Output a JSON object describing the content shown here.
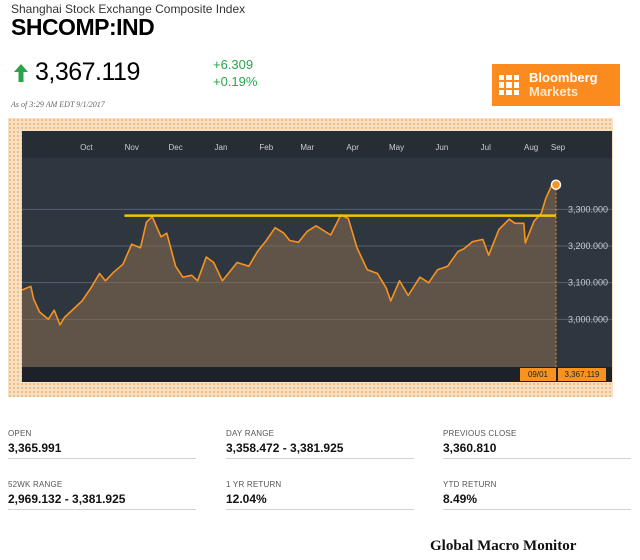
{
  "header": {
    "subtitle": "Shanghai Stock Exchange Composite Index",
    "ticker": "SHCOMP:IND",
    "price": "3,367.119",
    "change_abs": "+6.309",
    "change_pct": "+0.19%",
    "as_of": "As of 3:29 AM EDT 9/1/2017"
  },
  "logo": {
    "line1": "Bloomberg",
    "line2": "Markets"
  },
  "colors": {
    "accent": "#fb8b1e",
    "up": "#2aa34a",
    "chart_bg": "#2e3640",
    "line": "#f7931e",
    "resistance": "#f5c400"
  },
  "icons": {
    "trend": "up-arrow-icon",
    "logo": "bloomberg-grid-icon"
  },
  "chart_data": {
    "type": "area",
    "title": "",
    "x_ticks": [
      "Oct",
      "Nov",
      "Dec",
      "Jan",
      "Feb",
      "Mar",
      "Apr",
      "May",
      "Jun",
      "Jul",
      "Aug",
      "Sep"
    ],
    "y_ticks": [
      3000,
      3100,
      3200,
      3300
    ],
    "y_tick_labels": [
      "3,000.000",
      "3,100.000",
      "3,200.000",
      "3,300.000"
    ],
    "ylim": [
      2870,
      3440
    ],
    "x_range": [
      "2016-09-01",
      "2017-09-01"
    ],
    "grid": true,
    "resistance_level": 3283,
    "series": [
      {
        "points": [
          [
            "2016-09-01",
            3080
          ],
          [
            "2016-09-07",
            3090
          ],
          [
            "2016-09-09",
            3055
          ],
          [
            "2016-09-13",
            3020
          ],
          [
            "2016-09-19",
            3000
          ],
          [
            "2016-09-23",
            3025
          ],
          [
            "2016-09-27",
            2985
          ],
          [
            "2016-09-30",
            3005
          ],
          [
            "2016-10-12",
            3050
          ],
          [
            "2016-10-18",
            3085
          ],
          [
            "2016-10-24",
            3125
          ],
          [
            "2016-10-28",
            3105
          ],
          [
            "2016-11-03",
            3130
          ],
          [
            "2016-11-09",
            3150
          ],
          [
            "2016-11-15",
            3205
          ],
          [
            "2016-11-21",
            3195
          ],
          [
            "2016-11-25",
            3265
          ],
          [
            "2016-11-29",
            3280
          ],
          [
            "2016-12-05",
            3225
          ],
          [
            "2016-12-09",
            3235
          ],
          [
            "2016-12-15",
            3145
          ],
          [
            "2016-12-20",
            3115
          ],
          [
            "2016-12-26",
            3120
          ],
          [
            "2016-12-30",
            3105
          ],
          [
            "2017-01-05",
            3170
          ],
          [
            "2017-01-10",
            3155
          ],
          [
            "2017-01-16",
            3105
          ],
          [
            "2017-01-20",
            3125
          ],
          [
            "2017-01-26",
            3155
          ],
          [
            "2017-02-03",
            3145
          ],
          [
            "2017-02-09",
            3185
          ],
          [
            "2017-02-15",
            3215
          ],
          [
            "2017-02-21",
            3250
          ],
          [
            "2017-02-27",
            3235
          ],
          [
            "2017-03-03",
            3215
          ],
          [
            "2017-03-09",
            3210
          ],
          [
            "2017-03-15",
            3240
          ],
          [
            "2017-03-21",
            3255
          ],
          [
            "2017-03-27",
            3240
          ],
          [
            "2017-03-31",
            3230
          ],
          [
            "2017-04-07",
            3285
          ],
          [
            "2017-04-12",
            3275
          ],
          [
            "2017-04-18",
            3195
          ],
          [
            "2017-04-25",
            3135
          ],
          [
            "2017-05-02",
            3125
          ],
          [
            "2017-05-08",
            3085
          ],
          [
            "2017-05-11",
            3050
          ],
          [
            "2017-05-17",
            3105
          ],
          [
            "2017-05-23",
            3065
          ],
          [
            "2017-05-31",
            3115
          ],
          [
            "2017-06-06",
            3100
          ],
          [
            "2017-06-12",
            3135
          ],
          [
            "2017-06-19",
            3145
          ],
          [
            "2017-06-26",
            3185
          ],
          [
            "2017-06-30",
            3192
          ],
          [
            "2017-07-06",
            3212
          ],
          [
            "2017-07-13",
            3218
          ],
          [
            "2017-07-17",
            3175
          ],
          [
            "2017-07-24",
            3245
          ],
          [
            "2017-07-31",
            3273
          ],
          [
            "2017-08-04",
            3262
          ],
          [
            "2017-08-10",
            3262
          ],
          [
            "2017-08-11",
            3208
          ],
          [
            "2017-08-17",
            3268
          ],
          [
            "2017-08-22",
            3290
          ],
          [
            "2017-08-25",
            3330
          ],
          [
            "2017-08-29",
            3365
          ],
          [
            "2017-09-01",
            3367.119
          ]
        ]
      }
    ],
    "last_point": {
      "date_label": "09/01",
      "value_label": "3,367.119"
    }
  },
  "stats": [
    {
      "label": "OPEN",
      "value": "3,365.991"
    },
    {
      "label": "DAY RANGE",
      "value": "3,358.472 - 3,381.925"
    },
    {
      "label": "PREVIOUS CLOSE",
      "value": "3,360.810"
    },
    {
      "label": "52WK RANGE",
      "value": "2,969.132 - 3,381.925"
    },
    {
      "label": "1 YR RETURN",
      "value": "12.04%"
    },
    {
      "label": "YTD RETURN",
      "value": "8.49%"
    }
  ],
  "footer": {
    "text": "Global Macro Monitor"
  }
}
